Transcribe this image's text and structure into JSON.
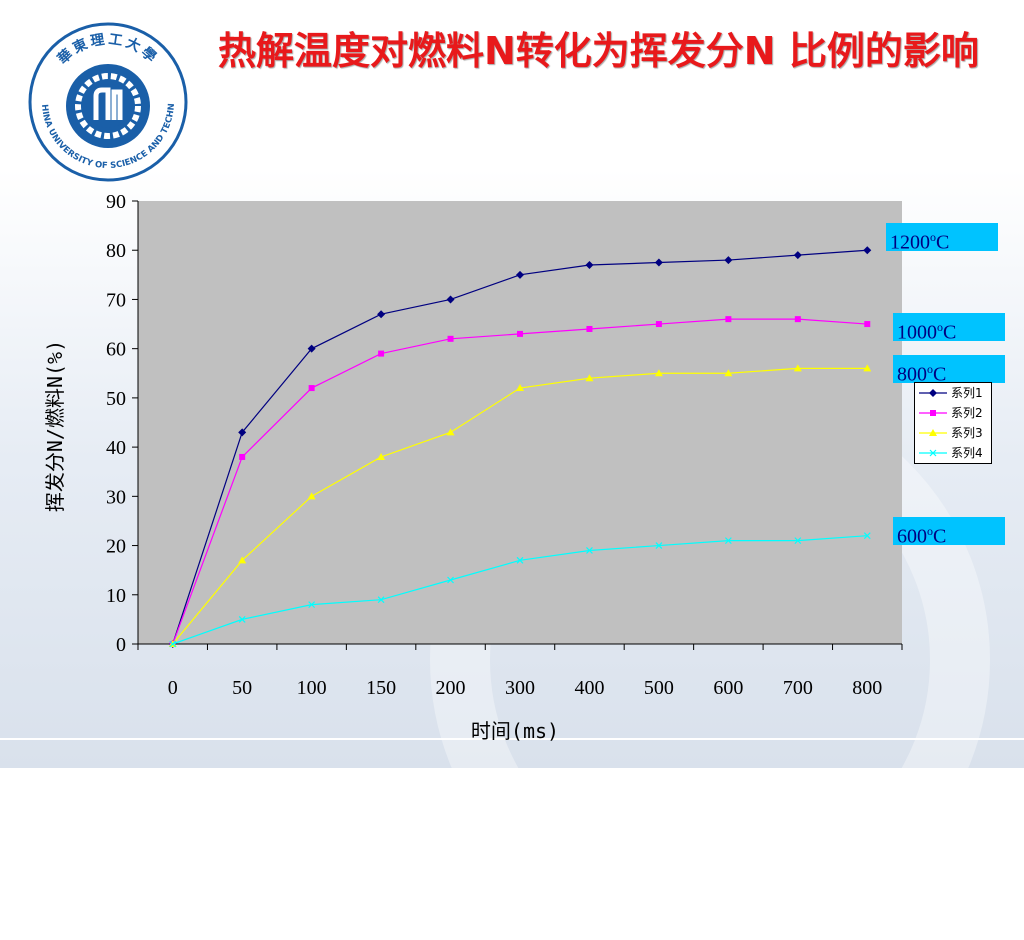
{
  "title": "热解温度对燃料N转化为挥发分N 比例的影响",
  "logo": {
    "text_cn": "華東理工大學",
    "text_en": "EAST CHINA UNIVERSITY OF SCIENCE AND TECHNOLOGY",
    "color": "#1a5fa8"
  },
  "chart_data": {
    "type": "line",
    "categories": [
      "0",
      "50",
      "100",
      "150",
      "200",
      "300",
      "400",
      "500",
      "600",
      "700",
      "800"
    ],
    "xlabel": "时间(ms)",
    "ylabel": "挥发分N/燃料N(%)",
    "ylim": [
      0,
      90
    ],
    "yticks": [
      0,
      10,
      20,
      30,
      40,
      50,
      60,
      70,
      80,
      90
    ],
    "grid": false,
    "plot_background": "#c0c0c0",
    "legend_position": "right",
    "series": [
      {
        "name": "系列1",
        "color": "#000080",
        "marker": "diamond",
        "values": [
          0,
          43,
          60,
          67,
          70,
          75,
          77,
          77.5,
          78,
          79,
          80
        ]
      },
      {
        "name": "系列2",
        "color": "#ff00ff",
        "marker": "square",
        "values": [
          0,
          38,
          52,
          59,
          62,
          63,
          64,
          65,
          66,
          66,
          65
        ]
      },
      {
        "name": "系列3",
        "color": "#ffff00",
        "marker": "triangle",
        "values": [
          0,
          17,
          30,
          38,
          43,
          52,
          54,
          55,
          55,
          56,
          56
        ]
      },
      {
        "name": "系列4",
        "color": "#00ffff",
        "marker": "x",
        "values": [
          0,
          5,
          8,
          9,
          13,
          17,
          19,
          20,
          21,
          21,
          22
        ]
      }
    ],
    "annotations": [
      {
        "id": "t1200",
        "num": "1200",
        "sup": "o",
        "unit": "C"
      },
      {
        "id": "t1000",
        "num": "1000",
        "sup": "o",
        "unit": "C"
      },
      {
        "id": "t800",
        "num": "800",
        "sup": "o",
        "unit": "C"
      },
      {
        "id": "t600",
        "num": "600",
        "sup": "o",
        "unit": "C"
      }
    ]
  }
}
